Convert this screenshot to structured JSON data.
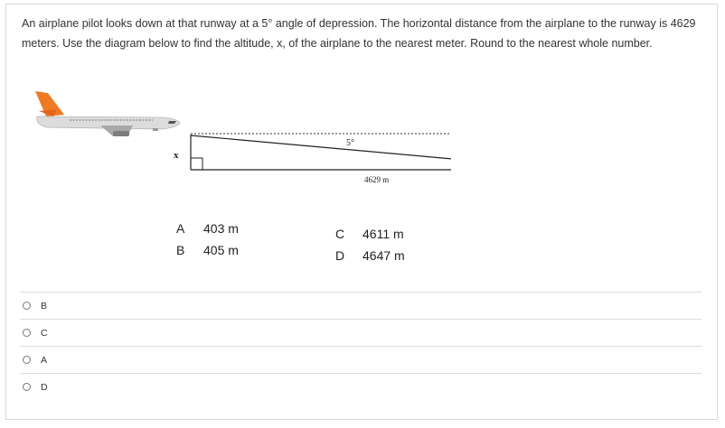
{
  "question": {
    "text": "An airplane pilot looks down at that runway at a 5° angle of depression. The horizontal distance from the airplane to the runway is 4629 meters.  Use the diagram below to find the altitude, x, of the airplane to the nearest meter. Round to the nearest whole number."
  },
  "diagram": {
    "angle_label": "5°",
    "side_label": "x",
    "distance_label": "4629 m"
  },
  "answer_choices": [
    {
      "letter": "A",
      "value": "403 m"
    },
    {
      "letter": "B",
      "value": "405 m"
    },
    {
      "letter": "C",
      "value": "4611 m"
    },
    {
      "letter": "D",
      "value": "4647 m"
    }
  ],
  "options": [
    {
      "label": "B"
    },
    {
      "label": "C"
    },
    {
      "label": "A"
    },
    {
      "label": "D"
    }
  ],
  "colors": {
    "plane_tail": "#f07a24",
    "plane_body": "#d9d9d9",
    "border": "#d7d7d7",
    "divider": "#dddddd"
  }
}
